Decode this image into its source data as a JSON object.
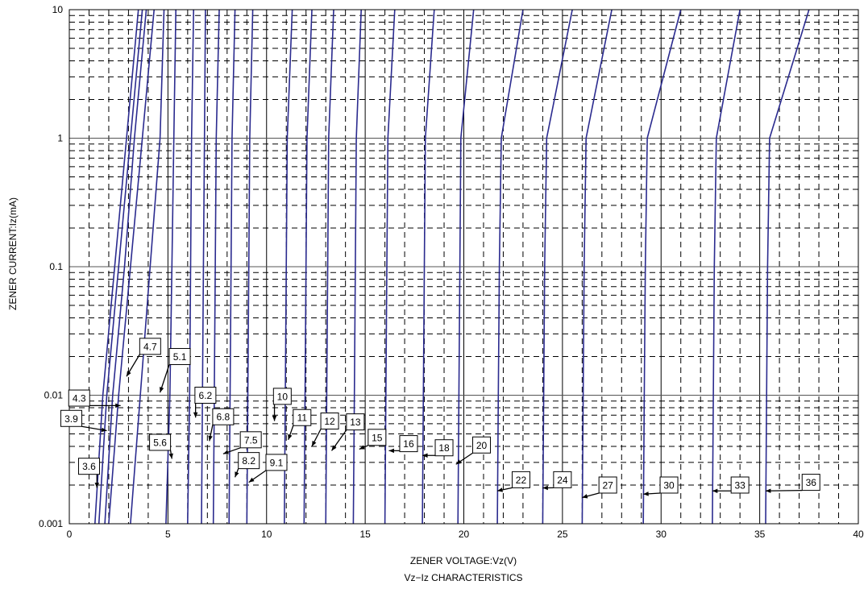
{
  "chart_data": {
    "type": "line",
    "title": "",
    "xlabel": "ZENER VOLTAGE:Vz(V)",
    "subtitle": "Vz−Iz CHARACTERISTICS",
    "ylabel": "ZENER CURRENT:Iz(mA)",
    "xlim": [
      0,
      40
    ],
    "ylim": [
      0.001,
      10
    ],
    "y_scale": "log",
    "x_ticks": [
      "0",
      "5",
      "10",
      "15",
      "20",
      "25",
      "30",
      "35",
      "40"
    ],
    "y_ticks": [
      "0.001",
      "0.01",
      "0.1",
      "1",
      "10"
    ],
    "grid": true,
    "line_color": "#2b2b8f",
    "series": [
      {
        "name": "3.6",
        "points": [
          [
            1.3,
            0.001
          ],
          [
            1.7,
            0.01
          ],
          [
            2.3,
            0.1
          ],
          [
            2.9,
            1
          ],
          [
            3.5,
            10
          ]
        ]
      },
      {
        "name": "3.9",
        "points": [
          [
            1.5,
            0.001
          ],
          [
            1.9,
            0.01
          ],
          [
            2.5,
            0.1
          ],
          [
            3.1,
            1
          ],
          [
            3.7,
            10
          ]
        ]
      },
      {
        "name": "4.3",
        "points": [
          [
            1.8,
            0.001
          ],
          [
            2.2,
            0.01
          ],
          [
            2.8,
            0.1
          ],
          [
            3.3,
            1
          ],
          [
            3.9,
            10
          ]
        ]
      },
      {
        "name": "4.7",
        "points": [
          [
            2.0,
            0.001
          ],
          [
            2.5,
            0.01
          ],
          [
            3.1,
            0.1
          ],
          [
            3.7,
            1
          ],
          [
            4.3,
            10
          ]
        ]
      },
      {
        "name": "5.1",
        "points": [
          [
            3.1,
            0.001
          ],
          [
            3.6,
            0.01
          ],
          [
            4.1,
            0.1
          ],
          [
            4.6,
            1
          ],
          [
            4.8,
            10
          ]
        ]
      },
      {
        "name": "5.6",
        "points": [
          [
            4.9,
            0.001
          ],
          [
            5.1,
            0.01
          ],
          [
            5.2,
            0.1
          ],
          [
            5.3,
            1
          ],
          [
            5.4,
            10
          ]
        ]
      },
      {
        "name": "6.2",
        "points": [
          [
            6.0,
            0.001
          ],
          [
            6.1,
            0.01
          ],
          [
            6.15,
            0.1
          ],
          [
            6.2,
            1
          ],
          [
            6.3,
            10
          ]
        ]
      },
      {
        "name": "6.8",
        "points": [
          [
            6.7,
            0.001
          ],
          [
            6.75,
            0.01
          ],
          [
            6.8,
            0.1
          ],
          [
            6.85,
            1
          ],
          [
            6.9,
            10
          ]
        ]
      },
      {
        "name": "7.5",
        "points": [
          [
            7.3,
            0.001
          ],
          [
            7.35,
            0.01
          ],
          [
            7.4,
            0.1
          ],
          [
            7.45,
            1
          ],
          [
            7.6,
            10
          ]
        ]
      },
      {
        "name": "8.2",
        "points": [
          [
            8.1,
            0.001
          ],
          [
            8.15,
            0.01
          ],
          [
            8.2,
            0.1
          ],
          [
            8.25,
            1
          ],
          [
            8.4,
            10
          ]
        ]
      },
      {
        "name": "9.1",
        "points": [
          [
            9.0,
            0.001
          ],
          [
            9.05,
            0.01
          ],
          [
            9.1,
            0.1
          ],
          [
            9.15,
            1
          ],
          [
            9.3,
            10
          ]
        ]
      },
      {
        "name": "10",
        "points": [
          [
            10.9,
            0.001
          ],
          [
            10.95,
            0.01
          ],
          [
            11.0,
            0.1
          ],
          [
            11.05,
            1
          ],
          [
            11.3,
            10
          ]
        ]
      },
      {
        "name": "11",
        "points": [
          [
            11.9,
            0.001
          ],
          [
            11.95,
            0.01
          ],
          [
            12.0,
            0.1
          ],
          [
            12.05,
            1
          ],
          [
            12.3,
            10
          ]
        ]
      },
      {
        "name": "12",
        "points": [
          [
            13.0,
            0.001
          ],
          [
            13.05,
            0.01
          ],
          [
            13.1,
            0.1
          ],
          [
            13.15,
            1
          ],
          [
            13.4,
            10
          ]
        ]
      },
      {
        "name": "13",
        "points": [
          [
            14.4,
            0.001
          ],
          [
            14.45,
            0.01
          ],
          [
            14.5,
            0.1
          ],
          [
            14.55,
            1
          ],
          [
            14.8,
            10
          ]
        ]
      },
      {
        "name": "15",
        "points": [
          [
            16.0,
            0.001
          ],
          [
            16.05,
            0.01
          ],
          [
            16.1,
            0.1
          ],
          [
            16.15,
            1
          ],
          [
            16.5,
            10
          ]
        ]
      },
      {
        "name": "16",
        "points": [
          [
            17.9,
            0.001
          ],
          [
            17.95,
            0.01
          ],
          [
            18.0,
            0.1
          ],
          [
            18.05,
            1
          ],
          [
            18.5,
            10
          ]
        ]
      },
      {
        "name": "18",
        "points": [
          [
            19.7,
            0.001
          ],
          [
            19.75,
            0.01
          ],
          [
            19.8,
            0.1
          ],
          [
            19.85,
            1
          ],
          [
            20.5,
            10
          ]
        ]
      },
      {
        "name": "20",
        "points": [
          [
            21.7,
            0.001
          ],
          [
            21.75,
            0.01
          ],
          [
            21.8,
            0.1
          ],
          [
            21.9,
            1
          ],
          [
            23.0,
            10
          ]
        ]
      },
      {
        "name": "22",
        "points": [
          [
            24.0,
            0.001
          ],
          [
            24.05,
            0.01
          ],
          [
            24.1,
            0.1
          ],
          [
            24.2,
            1
          ],
          [
            25.5,
            10
          ]
        ]
      },
      {
        "name": "24",
        "points": [
          [
            26.0,
            0.001
          ],
          [
            26.05,
            0.01
          ],
          [
            26.1,
            0.1
          ],
          [
            26.2,
            1
          ],
          [
            27.5,
            10
          ]
        ]
      },
      {
        "name": "27",
        "points": [
          [
            29.1,
            0.001
          ],
          [
            29.15,
            0.01
          ],
          [
            29.2,
            0.1
          ],
          [
            29.3,
            1
          ],
          [
            31.0,
            10
          ]
        ]
      },
      {
        "name": "30",
        "points": [
          [
            32.6,
            0.001
          ],
          [
            32.65,
            0.01
          ],
          [
            32.7,
            0.1
          ],
          [
            32.8,
            1
          ],
          [
            34.0,
            10
          ]
        ]
      },
      {
        "name": "33",
        "points": [
          [
            35.3,
            0.001
          ],
          [
            35.35,
            0.01
          ],
          [
            35.4,
            0.1
          ],
          [
            35.5,
            1
          ],
          [
            37.5,
            10
          ]
        ]
      }
    ],
    "annotations": [
      {
        "text": "3.6",
        "tx": 1.0,
        "ty": 0.0028,
        "ax": 1.4,
        "ay": 0.0019
      },
      {
        "text": "3.9",
        "tx": 0.1,
        "ty": 0.0066,
        "ax": 1.9,
        "ay": 0.0053
      },
      {
        "text": "4.3",
        "tx": 0.5,
        "ty": 0.0095,
        "ax": 2.6,
        "ay": 0.0083
      },
      {
        "text": "4.7",
        "tx": 4.1,
        "ty": 0.024,
        "ax": 2.9,
        "ay": 0.014
      },
      {
        "text": "5.1",
        "tx": 5.6,
        "ty": 0.02,
        "ax": 4.6,
        "ay": 0.0105
      },
      {
        "text": "5.6",
        "tx": 4.6,
        "ty": 0.0043,
        "ax": 5.2,
        "ay": 0.0032
      },
      {
        "text": "6.2",
        "tx": 6.9,
        "ty": 0.01,
        "ax": 6.4,
        "ay": 0.0067
      },
      {
        "text": "6.8",
        "tx": 7.8,
        "ty": 0.0068,
        "ax": 7.1,
        "ay": 0.0044
      },
      {
        "text": "7.5",
        "tx": 9.2,
        "ty": 0.0045,
        "ax": 7.8,
        "ay": 0.0035
      },
      {
        "text": "8.2",
        "tx": 9.1,
        "ty": 0.0031,
        "ax": 8.4,
        "ay": 0.0023
      },
      {
        "text": "9.1",
        "tx": 10.5,
        "ty": 0.003,
        "ax": 9.1,
        "ay": 0.0021
      },
      {
        "text": "10",
        "tx": 10.8,
        "ty": 0.0098,
        "ax": 10.4,
        "ay": 0.0063
      },
      {
        "text": "11",
        "tx": 11.8,
        "ty": 0.0067,
        "ax": 11.1,
        "ay": 0.0045
      },
      {
        "text": "12",
        "tx": 13.2,
        "ty": 0.0063,
        "ax": 12.3,
        "ay": 0.004
      },
      {
        "text": "13",
        "tx": 14.5,
        "ty": 0.0062,
        "ax": 13.3,
        "ay": 0.0037
      },
      {
        "text": "15",
        "tx": 15.6,
        "ty": 0.0047,
        "ax": 14.7,
        "ay": 0.0038
      },
      {
        "text": "16",
        "tx": 17.2,
        "ty": 0.0042,
        "ax": 16.2,
        "ay": 0.0037
      },
      {
        "text": "18",
        "tx": 19.0,
        "ty": 0.0039,
        "ax": 17.9,
        "ay": 0.0034
      },
      {
        "text": "20",
        "tx": 20.9,
        "ty": 0.0041,
        "ax": 19.6,
        "ay": 0.0029
      },
      {
        "text": "22",
        "tx": 22.9,
        "ty": 0.0022,
        "ax": 21.7,
        "ay": 0.0018
      },
      {
        "text": "24",
        "tx": 25.0,
        "ty": 0.0022,
        "ax": 24.0,
        "ay": 0.0019
      },
      {
        "text": "27",
        "tx": 27.3,
        "ty": 0.002,
        "ax": 26.0,
        "ay": 0.0016
      },
      {
        "text": "30",
        "tx": 30.4,
        "ty": 0.002,
        "ax": 29.1,
        "ay": 0.0017
      },
      {
        "text": "33",
        "tx": 34.0,
        "ty": 0.002,
        "ax": 32.6,
        "ay": 0.0018
      },
      {
        "text": "36",
        "tx": 37.6,
        "ty": 0.0021,
        "ax": 35.3,
        "ay": 0.0018
      }
    ]
  }
}
